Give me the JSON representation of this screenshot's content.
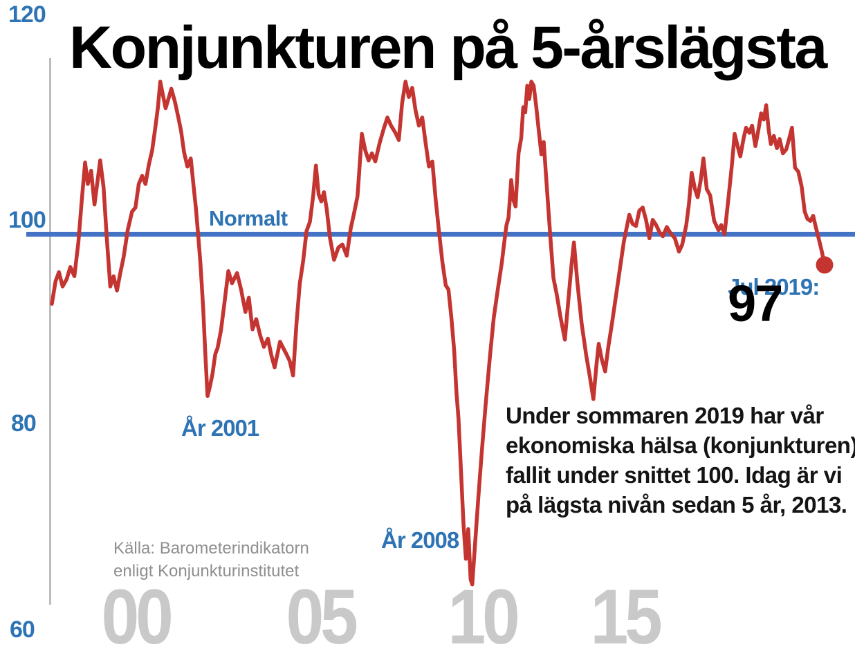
{
  "colors": {
    "accent_blue": "#2e74b5",
    "reference_line_blue": "#4472c4",
    "line_red": "#c43430",
    "axis_gray": "#bdbdbd",
    "year_label_gray": "#c9c9c9",
    "source_gray": "#8f8f8f"
  },
  "chart_data": {
    "type": "line",
    "title": "Konjunkturen på 5-årslägsta",
    "grid": false,
    "legend": "none",
    "ylim": [
      60,
      120
    ],
    "xlim": [
      1996.5,
      2019.6
    ],
    "y_tick_labels": [
      "120",
      "100",
      "80",
      "60"
    ],
    "x_tick_labels": [
      "00",
      "05",
      "10",
      "15"
    ],
    "x_tick_years": [
      2000,
      2005,
      2010,
      2015
    ],
    "reference_line": {
      "value": 100,
      "label": "Normalt"
    },
    "marker": {
      "x": 2019.54,
      "y": 97,
      "label": "97"
    },
    "series": [
      {
        "name": "Barometerindikatorn",
        "color": "#c43430",
        "points": [
          [
            1996.51,
            93.2
          ],
          [
            1996.62,
            95.4
          ],
          [
            1996.72,
            96.3
          ],
          [
            1996.83,
            94.9
          ],
          [
            1996.95,
            95.6
          ],
          [
            1997.06,
            96.8
          ],
          [
            1997.18,
            95.9
          ],
          [
            1997.3,
            99.2
          ],
          [
            1997.4,
            103.3
          ],
          [
            1997.5,
            107.0
          ],
          [
            1997.58,
            104.9
          ],
          [
            1997.68,
            106.2
          ],
          [
            1997.78,
            102.9
          ],
          [
            1997.88,
            105.4
          ],
          [
            1997.95,
            107.2
          ],
          [
            1998.05,
            104.6
          ],
          [
            1998.15,
            99.5
          ],
          [
            1998.25,
            94.9
          ],
          [
            1998.35,
            95.9
          ],
          [
            1998.45,
            94.5
          ],
          [
            1998.55,
            96.2
          ],
          [
            1998.65,
            97.8
          ],
          [
            1998.77,
            100.4
          ],
          [
            1998.9,
            102.2
          ],
          [
            1999.0,
            102.6
          ],
          [
            1999.1,
            104.9
          ],
          [
            1999.2,
            105.7
          ],
          [
            1999.3,
            104.9
          ],
          [
            1999.4,
            106.8
          ],
          [
            1999.5,
            108.2
          ],
          [
            1999.6,
            110.6
          ],
          [
            1999.67,
            112.4
          ],
          [
            1999.74,
            114.9
          ],
          [
            1999.82,
            113.6
          ],
          [
            1999.9,
            112.3
          ],
          [
            2000.0,
            113.4
          ],
          [
            2000.07,
            114.2
          ],
          [
            2000.18,
            112.9
          ],
          [
            2000.28,
            111.4
          ],
          [
            2000.36,
            110.1
          ],
          [
            2000.45,
            108.0
          ],
          [
            2000.55,
            106.6
          ],
          [
            2000.65,
            107.4
          ],
          [
            2000.73,
            104.8
          ],
          [
            2000.8,
            102.6
          ],
          [
            2000.88,
            99.6
          ],
          [
            2000.94,
            97.0
          ],
          [
            2001.02,
            92.8
          ],
          [
            2001.08,
            88.6
          ],
          [
            2001.15,
            84.2
          ],
          [
            2001.22,
            85.1
          ],
          [
            2001.3,
            86.4
          ],
          [
            2001.38,
            88.3
          ],
          [
            2001.45,
            88.9
          ],
          [
            2001.55,
            90.6
          ],
          [
            2001.65,
            93.2
          ],
          [
            2001.77,
            96.4
          ],
          [
            2001.88,
            95.2
          ],
          [
            2002.03,
            96.2
          ],
          [
            2002.15,
            94.6
          ],
          [
            2002.28,
            92.4
          ],
          [
            2002.38,
            93.8
          ],
          [
            2002.49,
            90.7
          ],
          [
            2002.6,
            91.7
          ],
          [
            2002.72,
            90.1
          ],
          [
            2002.83,
            89.0
          ],
          [
            2002.95,
            89.8
          ],
          [
            2003.05,
            88.2
          ],
          [
            2003.15,
            87.0
          ],
          [
            2003.24,
            88.4
          ],
          [
            2003.31,
            89.5
          ],
          [
            2003.42,
            88.8
          ],
          [
            2003.5,
            88.3
          ],
          [
            2003.6,
            87.6
          ],
          [
            2003.7,
            86.2
          ],
          [
            2003.8,
            91.3
          ],
          [
            2003.9,
            95.2
          ],
          [
            2004.0,
            97.4
          ],
          [
            2004.1,
            100.3
          ],
          [
            2004.2,
            101.2
          ],
          [
            2004.3,
            103.8
          ],
          [
            2004.38,
            106.7
          ],
          [
            2004.46,
            103.9
          ],
          [
            2004.54,
            103.2
          ],
          [
            2004.62,
            104.1
          ],
          [
            2004.7,
            102.5
          ],
          [
            2004.8,
            99.6
          ],
          [
            2004.92,
            97.5
          ],
          [
            2005.05,
            98.7
          ],
          [
            2005.17,
            99.0
          ],
          [
            2005.3,
            97.9
          ],
          [
            2005.42,
            100.6
          ],
          [
            2005.52,
            102.1
          ],
          [
            2005.62,
            103.7
          ],
          [
            2005.75,
            109.8
          ],
          [
            2005.85,
            108.2
          ],
          [
            2005.95,
            107.2
          ],
          [
            2006.05,
            107.9
          ],
          [
            2006.15,
            107.1
          ],
          [
            2006.28,
            108.9
          ],
          [
            2006.4,
            110.3
          ],
          [
            2006.51,
            111.4
          ],
          [
            2006.62,
            110.6
          ],
          [
            2006.75,
            109.9
          ],
          [
            2006.85,
            109.2
          ],
          [
            2006.95,
            112.8
          ],
          [
            2007.05,
            114.9
          ],
          [
            2007.15,
            113.4
          ],
          [
            2007.25,
            114.3
          ],
          [
            2007.35,
            112.1
          ],
          [
            2007.45,
            110.6
          ],
          [
            2007.55,
            111.4
          ],
          [
            2007.65,
            108.9
          ],
          [
            2007.75,
            106.6
          ],
          [
            2007.85,
            107.1
          ],
          [
            2007.95,
            103.4
          ],
          [
            2008.05,
            100.2
          ],
          [
            2008.15,
            97.3
          ],
          [
            2008.25,
            95.0
          ],
          [
            2008.33,
            94.6
          ],
          [
            2008.42,
            91.8
          ],
          [
            2008.5,
            88.7
          ],
          [
            2008.57,
            84.5
          ],
          [
            2008.63,
            82.0
          ],
          [
            2008.7,
            77.2
          ],
          [
            2008.78,
            71.6
          ],
          [
            2008.85,
            68.3
          ],
          [
            2008.92,
            71.2
          ],
          [
            2008.99,
            66.3
          ],
          [
            2009.04,
            65.8
          ],
          [
            2009.12,
            69.6
          ],
          [
            2009.22,
            74.2
          ],
          [
            2009.32,
            78.6
          ],
          [
            2009.44,
            83.4
          ],
          [
            2009.56,
            87.8
          ],
          [
            2009.68,
            91.8
          ],
          [
            2009.8,
            94.6
          ],
          [
            2009.92,
            97.2
          ],
          [
            2010.0,
            99.4
          ],
          [
            2010.06,
            100.9
          ],
          [
            2010.12,
            101.6
          ],
          [
            2010.2,
            105.3
          ],
          [
            2010.26,
            103.4
          ],
          [
            2010.33,
            102.7
          ],
          [
            2010.42,
            107.9
          ],
          [
            2010.5,
            109.4
          ],
          [
            2010.56,
            112.4
          ],
          [
            2010.62,
            111.9
          ],
          [
            2010.68,
            114.5
          ],
          [
            2010.74,
            113.2
          ],
          [
            2010.8,
            114.9
          ],
          [
            2010.87,
            114.5
          ],
          [
            2010.95,
            112.4
          ],
          [
            2011.03,
            109.9
          ],
          [
            2011.1,
            107.8
          ],
          [
            2011.17,
            109.0
          ],
          [
            2011.26,
            104.7
          ],
          [
            2011.36,
            100.1
          ],
          [
            2011.46,
            95.7
          ],
          [
            2011.56,
            94.1
          ],
          [
            2011.67,
            91.9
          ],
          [
            2011.8,
            89.7
          ],
          [
            2011.9,
            93.4
          ],
          [
            2012.0,
            97.1
          ],
          [
            2012.07,
            99.2
          ],
          [
            2012.17,
            95.4
          ],
          [
            2012.3,
            91.3
          ],
          [
            2012.44,
            88.1
          ],
          [
            2012.55,
            86.0
          ],
          [
            2012.65,
            83.9
          ],
          [
            2012.74,
            87.2
          ],
          [
            2012.81,
            89.3
          ],
          [
            2012.9,
            87.8
          ],
          [
            2013.0,
            86.6
          ],
          [
            2013.1,
            89.1
          ],
          [
            2013.2,
            91.2
          ],
          [
            2013.32,
            93.9
          ],
          [
            2013.44,
            96.6
          ],
          [
            2013.56,
            99.3
          ],
          [
            2013.64,
            100.6
          ],
          [
            2013.72,
            101.9
          ],
          [
            2013.82,
            101.0
          ],
          [
            2013.92,
            100.8
          ],
          [
            2014.02,
            102.3
          ],
          [
            2014.12,
            102.6
          ],
          [
            2014.22,
            101.4
          ],
          [
            2014.32,
            99.6
          ],
          [
            2014.42,
            101.4
          ],
          [
            2014.52,
            100.9
          ],
          [
            2014.62,
            100.2
          ],
          [
            2014.72,
            99.8
          ],
          [
            2014.84,
            100.7
          ],
          [
            2014.95,
            100.1
          ],
          [
            2015.08,
            99.6
          ],
          [
            2015.2,
            98.3
          ],
          [
            2015.3,
            99.0
          ],
          [
            2015.42,
            100.9
          ],
          [
            2015.5,
            103.0
          ],
          [
            2015.58,
            106.0
          ],
          [
            2015.68,
            104.4
          ],
          [
            2015.76,
            103.6
          ],
          [
            2015.85,
            105.3
          ],
          [
            2015.93,
            107.4
          ],
          [
            2016.03,
            104.4
          ],
          [
            2016.13,
            103.8
          ],
          [
            2016.25,
            101.3
          ],
          [
            2016.38,
            100.4
          ],
          [
            2016.46,
            100.9
          ],
          [
            2016.56,
            100.0
          ],
          [
            2016.68,
            103.6
          ],
          [
            2016.78,
            106.8
          ],
          [
            2016.86,
            109.8
          ],
          [
            2016.95,
            108.6
          ],
          [
            2017.03,
            107.6
          ],
          [
            2017.13,
            109.4
          ],
          [
            2017.2,
            110.4
          ],
          [
            2017.3,
            109.9
          ],
          [
            2017.38,
            110.6
          ],
          [
            2017.48,
            108.6
          ],
          [
            2017.57,
            110.2
          ],
          [
            2017.65,
            111.8
          ],
          [
            2017.73,
            111.2
          ],
          [
            2017.8,
            112.6
          ],
          [
            2017.88,
            110.1
          ],
          [
            2017.94,
            108.8
          ],
          [
            2018.03,
            109.6
          ],
          [
            2018.12,
            108.4
          ],
          [
            2018.2,
            109.3
          ],
          [
            2018.3,
            107.9
          ],
          [
            2018.4,
            108.3
          ],
          [
            2018.5,
            109.5
          ],
          [
            2018.57,
            110.4
          ],
          [
            2018.66,
            106.5
          ],
          [
            2018.76,
            106.1
          ],
          [
            2018.86,
            104.6
          ],
          [
            2018.95,
            102.2
          ],
          [
            2019.03,
            101.5
          ],
          [
            2019.12,
            101.3
          ],
          [
            2019.2,
            101.8
          ],
          [
            2019.28,
            100.7
          ],
          [
            2019.38,
            99.4
          ],
          [
            2019.46,
            98.3
          ],
          [
            2019.54,
            97.0
          ]
        ]
      }
    ]
  },
  "annotations": {
    "year2001": "År 2001",
    "year2008": "År 2008"
  },
  "latest": {
    "label": "Jul 2019:",
    "value": "97"
  },
  "body_text": {
    "lines": [
      "Under sommaren 2019 har vår",
      "ekonomiska hälsa (konjunkturen)",
      "fallit under snittet 100. Idag är vi",
      "på lägsta nivån sedan 5 år, 2013."
    ]
  },
  "source": {
    "line1": "Källa: Barometerindikatorn",
    "line2": "enligt Konjunkturinstitutet"
  }
}
